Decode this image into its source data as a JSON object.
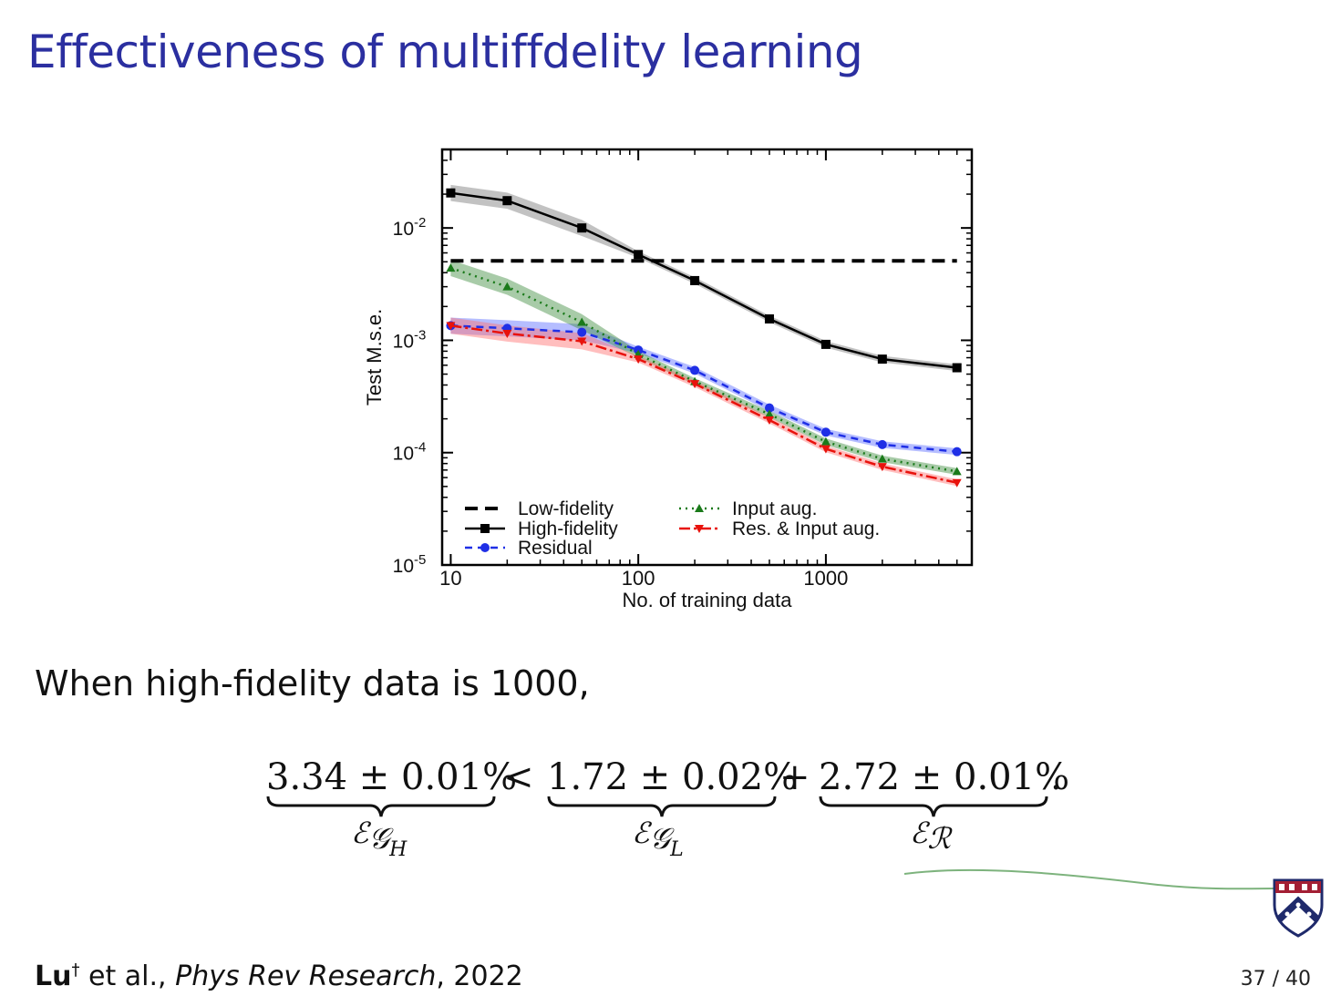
{
  "slide": {
    "title": "Effectiveness of multiffdelity learning",
    "sentence": "When high-fidelity data is 1000,",
    "equation": {
      "terms": [
        "3.34 ± 0.01%",
        "1.72 ± 0.02%",
        "2.72 ± 0.01%"
      ],
      "operators": [
        "<",
        "+",
        "."
      ],
      "labels": [
        {
          "main": "ℰ",
          "sub": "𝒢",
          "subsub": "H"
        },
        {
          "main": "ℰ",
          "sub": "𝒢",
          "subsub": "L"
        },
        {
          "main": "ℰ",
          "sub": "ℛ",
          "subsub": ""
        }
      ]
    },
    "citation": {
      "author": "Lu",
      "dagger": "†",
      "rest": " et al., ",
      "journal": "Phys Rev Research",
      "year": ", 2022"
    },
    "page": "37 / 40",
    "accent_color": "#2b2fa0"
  },
  "chart_data": {
    "type": "line",
    "xlabel": "No. of training data",
    "ylabel": "Test M.s.e.",
    "xscale": "log",
    "yscale": "log",
    "xlim": [
      9,
      6000
    ],
    "ylim": [
      1e-05,
      0.05
    ],
    "x_ticks": [
      10,
      100,
      1000
    ],
    "x_tick_labels": [
      "10",
      "100",
      "1000"
    ],
    "y_ticks": [
      1e-05,
      0.0001,
      0.001,
      0.01
    ],
    "y_tick_labels": [
      {
        "base": "10",
        "exp": "-5"
      },
      {
        "base": "10",
        "exp": "-4"
      },
      {
        "base": "10",
        "exp": "-3"
      },
      {
        "base": "10",
        "exp": "-2"
      }
    ],
    "legend_position": "bottom",
    "series": [
      {
        "name": "Low-fidelity",
        "color": "#000000",
        "dash": "14,8",
        "width": 4,
        "marker": "none",
        "x": [
          10,
          5000
        ],
        "y": [
          0.0051,
          0.0051
        ]
      },
      {
        "name": "High-fidelity",
        "color": "#000000",
        "dash": "",
        "width": 2.5,
        "marker": "square",
        "band": "#777777",
        "x": [
          10,
          20,
          50,
          100,
          200,
          500,
          1000,
          2000,
          5000
        ],
        "y": [
          0.0205,
          0.0175,
          0.01,
          0.0058,
          0.0034,
          0.00155,
          0.00092,
          0.00068,
          0.00057
        ]
      },
      {
        "name": "Residual",
        "color": "#1f2fe6",
        "dash": "8,6",
        "width": 2.5,
        "marker": "circle",
        "band": "#5a6cff",
        "x": [
          10,
          20,
          50,
          100,
          200,
          500,
          1000,
          2000,
          5000
        ],
        "y": [
          0.00135,
          0.00128,
          0.00118,
          0.00082,
          0.00054,
          0.00025,
          0.000152,
          0.000118,
          0.000102
        ]
      },
      {
        "name": "Input aug.",
        "color": "#1a7a1a",
        "dash": "2,5",
        "width": 2.5,
        "marker": "triangle-up",
        "band": "#3d8c3d",
        "x": [
          10,
          20,
          50,
          100,
          200,
          500,
          1000,
          2000,
          5000
        ],
        "y": [
          0.0044,
          0.003,
          0.00145,
          0.00075,
          0.00043,
          0.00022,
          0.000125,
          8.8e-05,
          6.8e-05
        ]
      },
      {
        "name": "Res. & Input aug.",
        "color": "#e8120c",
        "dash": "12,4,3,4",
        "width": 2.5,
        "marker": "triangle-down",
        "band": "#ff6e6e",
        "x": [
          10,
          20,
          50,
          100,
          200,
          500,
          1000,
          2000,
          5000
        ],
        "y": [
          0.00135,
          0.00115,
          0.00098,
          0.00068,
          0.00041,
          0.000195,
          0.000108,
          7.5e-05,
          5.4e-05
        ]
      }
    ]
  }
}
